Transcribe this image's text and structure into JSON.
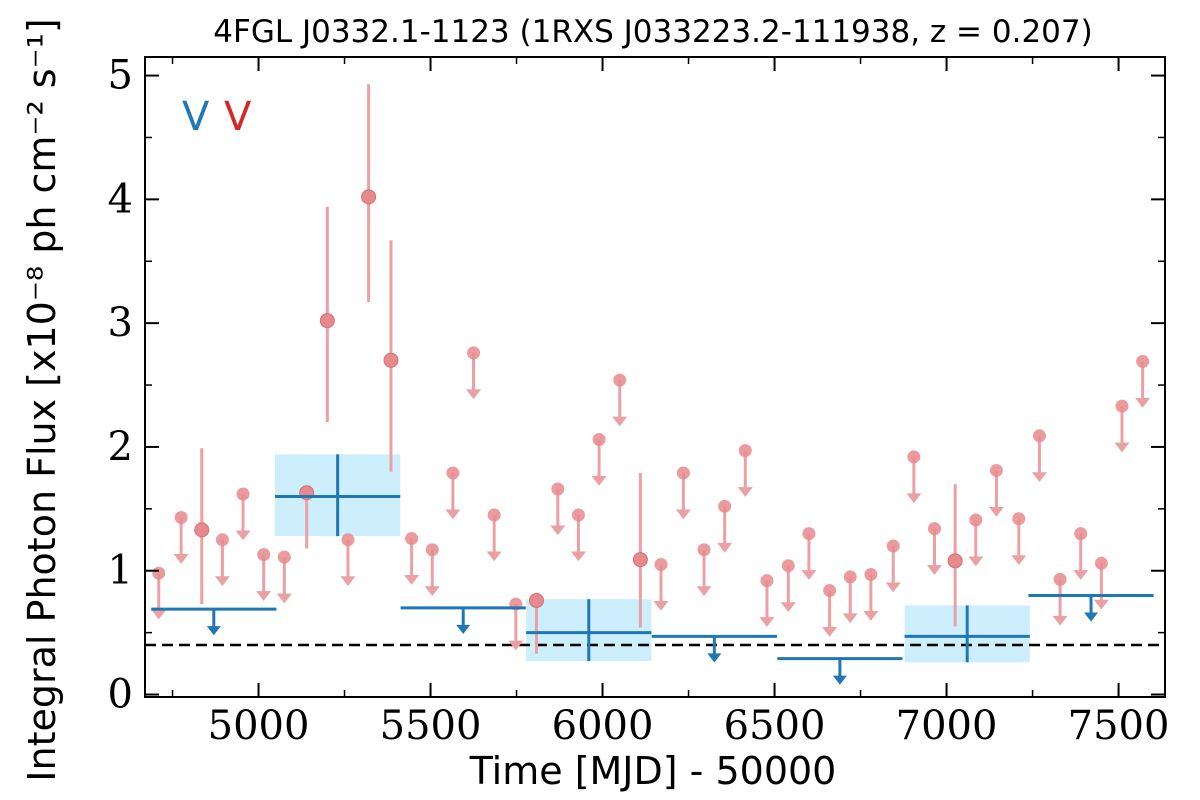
{
  "chart_data": {
    "type": "scatter",
    "title": "4FGL J0332.1-1123 (1RXS J033223.2-111938, z = 0.207)",
    "xlabel": "Time [MJD] - 50000",
    "ylabel": "Integral Photon Flux [x10⁻⁸ ph cm⁻² s⁻¹]",
    "xlim": [
      4670,
      7635
    ],
    "ylim": [
      -0.02,
      5.15
    ],
    "xticks": [
      5000,
      5500,
      6000,
      6500,
      7000,
      7500
    ],
    "yticks": [
      0,
      1,
      2,
      3,
      4,
      5
    ],
    "xtick_labels": [
      "5000",
      "5500",
      "6000",
      "6500",
      "7000",
      "7500"
    ],
    "ytick_labels": [
      "0",
      "1",
      "2",
      "3",
      "4",
      "5"
    ],
    "grid": false,
    "legend": {
      "placement": "top-left",
      "entries": [
        {
          "text": "V",
          "color": "#1f77b4"
        },
        {
          "text": "V",
          "color": "#d62728"
        }
      ]
    },
    "reference_line": {
      "y": 0.4,
      "style": "dashed",
      "color": "#000000"
    },
    "colors": {
      "blue": "#1f77b4",
      "red_marker": "#e8898d",
      "red_line": "#eba0a3",
      "band": "#cdeefc"
    },
    "blue_detections": [
      {
        "x": 5230,
        "x_err": 182,
        "y": 1.6,
        "y_lo": 1.28,
        "y_hi": 1.94
      },
      {
        "x": 5960,
        "x_err": 182,
        "y": 0.5,
        "y_lo": 0.27,
        "y_hi": 0.77
      },
      {
        "x": 7060,
        "x_err": 182,
        "y": 0.47,
        "y_lo": 0.26,
        "y_hi": 0.72
      }
    ],
    "blue_upper_limits": [
      {
        "x": 4870,
        "x_err": 182,
        "y": 0.69
      },
      {
        "x": 5595,
        "x_err": 182,
        "y": 0.7
      },
      {
        "x": 6325,
        "x_err": 182,
        "y": 0.47
      },
      {
        "x": 6690,
        "x_err": 182,
        "y": 0.29
      },
      {
        "x": 7420,
        "x_err": 182,
        "y": 0.8
      }
    ],
    "red_detections": [
      {
        "x": 4835,
        "y": 1.33,
        "y_lo": 0.73,
        "y_hi": 1.99
      },
      {
        "x": 5140,
        "y": 1.63,
        "y_lo": 1.18,
        "y_hi": 1.64
      },
      {
        "x": 5200,
        "y": 3.02,
        "y_lo": 2.2,
        "y_hi": 3.94
      },
      {
        "x": 5320,
        "y": 4.02,
        "y_lo": 3.17,
        "y_hi": 4.93
      },
      {
        "x": 5385,
        "y": 2.7,
        "y_lo": 1.8,
        "y_hi": 3.67
      },
      {
        "x": 5808,
        "y": 0.76,
        "y_lo": 0.33,
        "y_hi": 0.77
      },
      {
        "x": 6110,
        "y": 1.09,
        "y_lo": 0.54,
        "y_hi": 1.79
      },
      {
        "x": 7025,
        "y": 1.08,
        "y_lo": 0.55,
        "y_hi": 1.7
      }
    ],
    "red_upper_limits": [
      {
        "x": 4710,
        "y": 0.98
      },
      {
        "x": 4775,
        "y": 1.43
      },
      {
        "x": 4895,
        "y": 1.25
      },
      {
        "x": 4955,
        "y": 1.62
      },
      {
        "x": 5015,
        "y": 1.13
      },
      {
        "x": 5075,
        "y": 1.11
      },
      {
        "x": 5260,
        "y": 1.25
      },
      {
        "x": 5445,
        "y": 1.26
      },
      {
        "x": 5505,
        "y": 1.17
      },
      {
        "x": 5565,
        "y": 1.79
      },
      {
        "x": 5625,
        "y": 2.76
      },
      {
        "x": 5685,
        "y": 1.45
      },
      {
        "x": 5748,
        "y": 0.73
      },
      {
        "x": 5870,
        "y": 1.66
      },
      {
        "x": 5930,
        "y": 1.45
      },
      {
        "x": 5990,
        "y": 2.06
      },
      {
        "x": 6050,
        "y": 2.54
      },
      {
        "x": 6170,
        "y": 1.05
      },
      {
        "x": 6235,
        "y": 1.79
      },
      {
        "x": 6295,
        "y": 1.17
      },
      {
        "x": 6355,
        "y": 1.52
      },
      {
        "x": 6415,
        "y": 1.97
      },
      {
        "x": 6478,
        "y": 0.92
      },
      {
        "x": 6540,
        "y": 1.04
      },
      {
        "x": 6600,
        "y": 1.3
      },
      {
        "x": 6660,
        "y": 0.84
      },
      {
        "x": 6720,
        "y": 0.95
      },
      {
        "x": 6780,
        "y": 0.97
      },
      {
        "x": 6845,
        "y": 1.2
      },
      {
        "x": 6905,
        "y": 1.92
      },
      {
        "x": 6965,
        "y": 1.34
      },
      {
        "x": 7085,
        "y": 1.41
      },
      {
        "x": 7145,
        "y": 1.81
      },
      {
        "x": 7210,
        "y": 1.42
      },
      {
        "x": 7270,
        "y": 2.09
      },
      {
        "x": 7330,
        "y": 0.93
      },
      {
        "x": 7390,
        "y": 1.3
      },
      {
        "x": 7450,
        "y": 1.06
      },
      {
        "x": 7510,
        "y": 2.33
      },
      {
        "x": 7570,
        "y": 2.69
      }
    ]
  }
}
